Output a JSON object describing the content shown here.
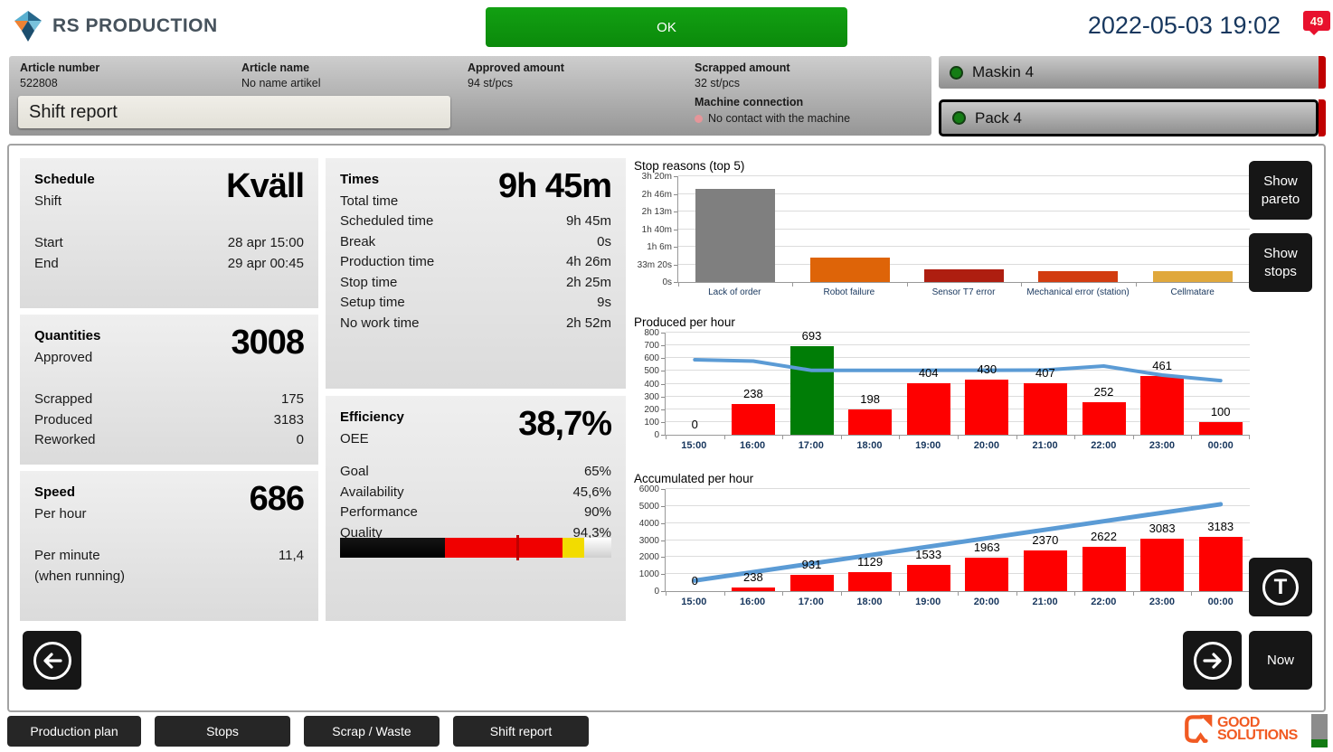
{
  "topbar": {
    "brand": "RS PRODUCTION",
    "ok_label": "OK",
    "timestamp": "2022-05-03 19:02",
    "alert_count": "49"
  },
  "infobar": {
    "fields": [
      {
        "label": "Article number",
        "value": "522808"
      },
      {
        "label": "Article name",
        "value": "No name artikel"
      },
      {
        "label": "Approved amount",
        "value": "94 st/pcs"
      },
      {
        "label": "Scrapped amount",
        "value": "32 st/pcs"
      }
    ],
    "machine_connection_label": "Machine connection",
    "machine_connection_status": "No contact with the machine",
    "view_selector_value": "Shift report"
  },
  "machines": {
    "items": [
      {
        "label": "Maskin 4",
        "selected": false
      },
      {
        "label": "Pack 4",
        "selected": true
      }
    ]
  },
  "panels": {
    "schedule": {
      "title": "Schedule",
      "subtitle": "Shift",
      "big_value": "Kväll",
      "rows": [
        {
          "label": "Start",
          "value": "28 apr 15:00"
        },
        {
          "label": "End",
          "value": "29 apr 00:45"
        }
      ]
    },
    "quantities": {
      "title": "Quantities",
      "subtitle": "Approved",
      "big_value": "3008",
      "rows": [
        {
          "label": "Scrapped",
          "value": "175"
        },
        {
          "label": "Produced",
          "value": "3183"
        },
        {
          "label": "Reworked",
          "value": "0"
        }
      ]
    },
    "speed": {
      "title": "Speed",
      "subtitle": "Per hour",
      "big_value": "686",
      "rows": [
        {
          "label": "Per minute",
          "label2": "(when running)",
          "value": "11,4"
        }
      ]
    },
    "times": {
      "title": "Times",
      "subtitle": "Total time",
      "big_value": "9h 45m",
      "rows": [
        {
          "label": "Scheduled time",
          "value": "9h 45m"
        },
        {
          "label": "Break",
          "value": "0s"
        },
        {
          "label": "Production time",
          "value": "4h 26m"
        },
        {
          "label": "Stop time",
          "value": "2h 25m"
        },
        {
          "label": "Setup time",
          "value": "9s"
        },
        {
          "label": "No work time",
          "value": "2h 52m"
        }
      ]
    },
    "efficiency": {
      "title": "Efficiency",
      "subtitle": "OEE",
      "big_value": "38,7%",
      "rows": [
        {
          "label": "Goal",
          "value": "65%"
        },
        {
          "label": "Availability",
          "value": "45,6%"
        },
        {
          "label": "Performance",
          "value": "90%"
        },
        {
          "label": "Quality",
          "value": "94,3%"
        }
      ],
      "bar": {
        "oee_pct": 38.7,
        "goal_pct": 65,
        "red_end_pct": 82,
        "yellow_end_pct": 90,
        "colors": {
          "actual": "#151515",
          "below": "#F00000",
          "warn": "#F2DC00",
          "top_start": "#FFFFFF",
          "top_end": "#CFCFCF"
        }
      }
    }
  },
  "charts": {
    "stop_reasons": {
      "type": "bar",
      "title": "Stop reasons (top 5)",
      "ytick_labels": [
        "0s",
        "33m 20s",
        "1h 6m",
        "1h 40m",
        "2h 13m",
        "2h 46m",
        "3h 20m"
      ],
      "ymax": 12000,
      "categories": [
        "Lack of order",
        "Robot failure",
        "Sensor T7 error",
        "Mechanical error (station)",
        "Cellmatare"
      ],
      "values": [
        10600,
        2730,
        1470,
        1190,
        1280
      ],
      "bar_colors": [
        "#7F7F7F",
        "#DE6408",
        "#AE1E10",
        "#D23C10",
        "#E0A83C"
      ],
      "show_value_labels": false
    },
    "produced_per_hour": {
      "type": "bar+line",
      "title": "Produced per hour",
      "categories": [
        "15:00",
        "16:00",
        "17:00",
        "18:00",
        "19:00",
        "20:00",
        "21:00",
        "22:00",
        "23:00",
        "00:00"
      ],
      "values": [
        0,
        238,
        693,
        198,
        404,
        430,
        407,
        252,
        461,
        100
      ],
      "bar_colors": [
        "#FE0000",
        "#FE0000",
        "#007D06",
        "#FE0000",
        "#FE0000",
        "#FE0000",
        "#FE0000",
        "#FE0000",
        "#FE0000",
        "#FE0000"
      ],
      "line_values": [
        588,
        577,
        504,
        504,
        505,
        505,
        507,
        538,
        467,
        424
      ],
      "line_color": "#5B9BD5",
      "ymax": 800,
      "ytick_step": 100,
      "show_value_labels": true
    },
    "accumulated_per_hour": {
      "type": "bar+line",
      "title": "Accumulated per hour",
      "categories": [
        "15:00",
        "16:00",
        "17:00",
        "18:00",
        "19:00",
        "20:00",
        "21:00",
        "22:00",
        "23:00",
        "00:00"
      ],
      "values": [
        0,
        238,
        931,
        1129,
        1533,
        1963,
        2370,
        2622,
        3083,
        3183
      ],
      "bar_colors": [
        "#FE0000",
        "#FE0000",
        "#FE0000",
        "#FE0000",
        "#FE0000",
        "#FE0000",
        "#FE0000",
        "#FE0000",
        "#FE0000",
        "#FE0000"
      ],
      "line_values": [
        620,
        1118,
        1616,
        2114,
        2612,
        3110,
        3608,
        4106,
        4604,
        5102
      ],
      "line_color": "#5B9BD5",
      "ymax": 6000,
      "ytick_step": 1000,
      "show_value_labels": true
    }
  },
  "side_buttons": {
    "show_pareto_line1": "Show",
    "show_pareto_line2": "pareto",
    "show_stops_line1": "Show",
    "show_stops_line2": "stops",
    "t_label": "T",
    "now_label": "Now"
  },
  "bottom_nav": {
    "items": [
      {
        "label": "Production plan"
      },
      {
        "label": "Stops"
      },
      {
        "label": "Scrap / Waste"
      },
      {
        "label": "Shift report"
      }
    ]
  },
  "footer": {
    "logo_line1": "GOOD",
    "logo_line2": "SOLUTIONS"
  }
}
